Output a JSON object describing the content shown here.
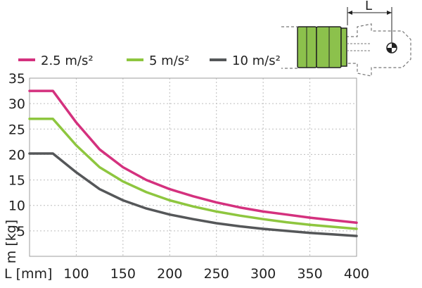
{
  "chart_data": {
    "type": "line",
    "title": "",
    "xlabel": "L [mm]",
    "ylabel": "m [kg]",
    "xlim": [
      50,
      400
    ],
    "ylim": [
      0,
      35
    ],
    "x_ticks": [
      100,
      150,
      200,
      250,
      300,
      350,
      400
    ],
    "y_ticks": [
      5,
      10,
      15,
      20,
      25,
      30,
      35
    ],
    "grid": true,
    "legend_position": "top-left",
    "diagram_label": "L",
    "series": [
      {
        "name": "2.5 m/s²",
        "color": "#d4317e",
        "points": [
          [
            50,
            32.5
          ],
          [
            75,
            32.5
          ],
          [
            100,
            26.3
          ],
          [
            125,
            21.0
          ],
          [
            150,
            17.5
          ],
          [
            175,
            15.0
          ],
          [
            200,
            13.2
          ],
          [
            225,
            11.8
          ],
          [
            250,
            10.6
          ],
          [
            275,
            9.6
          ],
          [
            300,
            8.8
          ],
          [
            325,
            8.2
          ],
          [
            350,
            7.6
          ],
          [
            375,
            7.1
          ],
          [
            400,
            6.6
          ]
        ]
      },
      {
        "name": "5 m/s²",
        "color": "#8ec63f",
        "points": [
          [
            50,
            27.0
          ],
          [
            75,
            27.0
          ],
          [
            100,
            21.8
          ],
          [
            125,
            17.5
          ],
          [
            150,
            14.7
          ],
          [
            175,
            12.6
          ],
          [
            200,
            11.0
          ],
          [
            225,
            9.8
          ],
          [
            250,
            8.8
          ],
          [
            275,
            8.0
          ],
          [
            300,
            7.3
          ],
          [
            325,
            6.7
          ],
          [
            350,
            6.2
          ],
          [
            375,
            5.8
          ],
          [
            400,
            5.4
          ]
        ]
      },
      {
        "name": "10 m/s²",
        "color": "#555759",
        "points": [
          [
            50,
            20.2
          ],
          [
            75,
            20.2
          ],
          [
            100,
            16.5
          ],
          [
            125,
            13.2
          ],
          [
            150,
            11.0
          ],
          [
            175,
            9.4
          ],
          [
            200,
            8.2
          ],
          [
            225,
            7.3
          ],
          [
            250,
            6.5
          ],
          [
            275,
            5.9
          ],
          [
            300,
            5.4
          ],
          [
            325,
            5.0
          ],
          [
            350,
            4.6
          ],
          [
            375,
            4.3
          ],
          [
            400,
            4.0
          ]
        ]
      }
    ]
  }
}
